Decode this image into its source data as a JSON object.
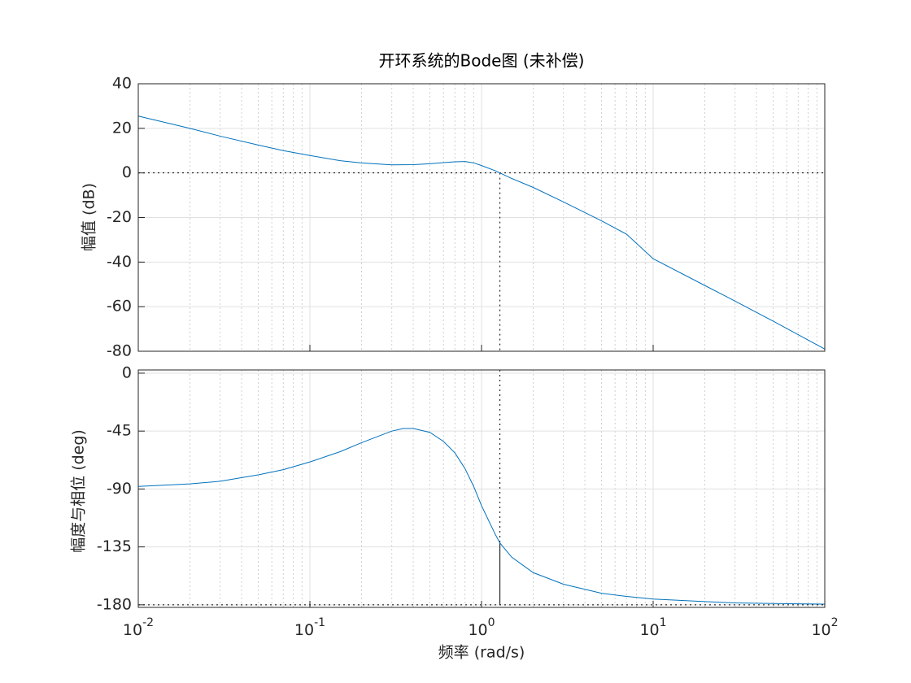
{
  "chart_data": [
    {
      "type": "line",
      "title": "开环系统的Bode图 (未补偿)",
      "ylabel": "幅值 (dB)",
      "xscale": "log",
      "xlim": [
        0.01,
        100
      ],
      "xticks": [
        0.01,
        0.1,
        1,
        10,
        100
      ],
      "ylim": [
        -80,
        40
      ],
      "yticks": [
        -80,
        -60,
        -40,
        -20,
        0,
        20,
        40
      ],
      "grid": true,
      "minor_grid": true,
      "x": [
        0.01,
        0.02,
        0.03,
        0.05,
        0.07,
        0.1,
        0.15,
        0.2,
        0.3,
        0.4,
        0.5,
        0.6,
        0.7,
        0.8,
        0.9,
        1,
        1.2,
        1.28,
        1.5,
        2,
        3,
        5,
        7,
        10,
        20,
        30,
        50,
        100
      ],
      "series": [
        {
          "color": "#0072bd",
          "values": [
            25.5,
            20,
            16.5,
            12.5,
            10,
            7.8,
            5.5,
            4.5,
            3.6,
            3.7,
            4.1,
            4.6,
            5,
            5.1,
            4.5,
            3.3,
            1,
            0,
            -2.5,
            -6.5,
            -13,
            -21.5,
            -27.5,
            -38.5,
            -50.5,
            -57.5,
            -66.5,
            -79
          ]
        }
      ],
      "hline": 0,
      "crossover": {
        "x": 1.28,
        "y": 0
      }
    },
    {
      "type": "line",
      "ylabel": "幅度与相位 (deg)",
      "xlabel": "频率   (rad/s)",
      "xscale": "log",
      "xlim": [
        0.01,
        100
      ],
      "xticks": [
        {
          "value": 0.01,
          "label": "10",
          "exponent": "-2"
        },
        {
          "value": 0.1,
          "label": "10",
          "exponent": "-1"
        },
        {
          "value": 1,
          "label": "10",
          "exponent": "0"
        },
        {
          "value": 10,
          "label": "10",
          "exponent": "1"
        },
        {
          "value": 100,
          "label": "10",
          "exponent": "2"
        }
      ],
      "ylim": [
        -182,
        2.5
      ],
      "yticks": [
        -180,
        -135,
        -90,
        -45,
        0
      ],
      "grid": true,
      "minor_grid": true,
      "x": [
        0.01,
        0.02,
        0.03,
        0.05,
        0.07,
        0.1,
        0.15,
        0.2,
        0.3,
        0.35,
        0.4,
        0.5,
        0.6,
        0.7,
        0.8,
        0.9,
        1,
        1.2,
        1.28,
        1.5,
        2,
        3,
        5,
        7,
        10,
        20,
        30,
        50,
        100
      ],
      "series": [
        {
          "color": "#0072bd",
          "values": [
            -88,
            -86,
            -84,
            -79,
            -75,
            -69,
            -61,
            -54,
            -45,
            -43,
            -43,
            -46,
            -53,
            -62,
            -74,
            -88,
            -103,
            -125,
            -132,
            -143,
            -155,
            -164,
            -171,
            -173.5,
            -175.5,
            -177.5,
            -178.5,
            -179,
            -179.5
          ]
        }
      ],
      "hline": -180,
      "crossover": {
        "x": 1.28,
        "y": -132
      }
    }
  ]
}
